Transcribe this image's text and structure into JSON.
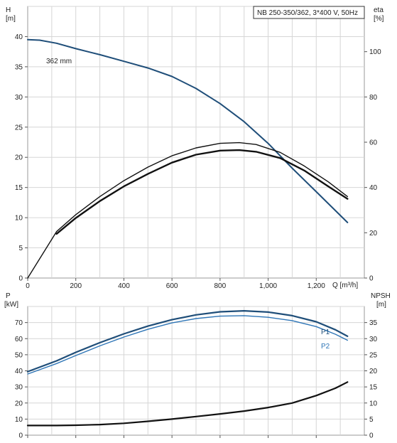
{
  "chart_data": [
    {
      "type": "line",
      "title": "NB 250-350/362, 3*400 V, 50Hz",
      "xlabel": "Q [m³/h]",
      "ylabel_left_name": "H",
      "ylabel_left_unit": "[m]",
      "ylabel_right_name": "eta",
      "ylabel_right_unit": "[%]",
      "xlim": [
        0,
        1400
      ],
      "ylim_left": [
        0,
        45
      ],
      "ylim_right": [
        0,
        120
      ],
      "x_ticks": [
        0,
        200,
        400,
        600,
        800,
        1000,
        1200
      ],
      "x_tick_labels": [
        "0",
        "200",
        "400",
        "600",
        "800",
        "1,000",
        "1,200"
      ],
      "y_left_ticks": [
        0,
        5,
        10,
        15,
        20,
        25,
        30,
        35,
        40
      ],
      "y_left_tick_labels": [
        "0",
        "5",
        "10",
        "15",
        "20",
        "25",
        "30",
        "35",
        "40"
      ],
      "y_right_ticks": [
        0,
        20,
        40,
        60,
        80,
        100
      ],
      "y_right_tick_labels": [
        "0",
        "20",
        "40",
        "60",
        "80",
        "100"
      ],
      "grid": true,
      "series": [
        {
          "name": "362 mm",
          "axis": "left",
          "color": "#1f4e79",
          "x": [
            0,
            50,
            120,
            200,
            300,
            400,
            500,
            600,
            700,
            800,
            900,
            1000,
            1100,
            1200,
            1330
          ],
          "y": [
            39.5,
            39.4,
            38.9,
            38.0,
            37.0,
            35.9,
            34.8,
            33.4,
            31.4,
            28.9,
            25.9,
            22.3,
            18.2,
            14.3,
            9.2
          ]
        },
        {
          "name": "",
          "axis": "right",
          "color": "#111111",
          "x": [
            0,
            120,
            200,
            300,
            400,
            500,
            600,
            700,
            800,
            880,
            950,
            1050,
            1150,
            1250,
            1330
          ],
          "y": [
            0,
            20.5,
            28,
            36,
            43,
            49,
            54,
            57.5,
            59.5,
            59.8,
            59,
            55.5,
            49.5,
            42.5,
            36
          ]
        },
        {
          "name": "",
          "axis": "right",
          "color": "#111111",
          "x": [
            120,
            200,
            300,
            400,
            500,
            600,
            700,
            800,
            880,
            950,
            1050,
            1150,
            1250,
            1330
          ],
          "y": [
            19.5,
            26.5,
            34,
            40.5,
            46,
            51,
            54.5,
            56.3,
            56.5,
            55.8,
            53,
            47.5,
            40.5,
            35
          ]
        }
      ]
    },
    {
      "type": "line",
      "xlabel": "",
      "ylabel_left_name": "P",
      "ylabel_left_unit": "[kW]",
      "ylabel_right_name": "NPSH",
      "ylabel_right_unit": "[m]",
      "xlim": [
        0,
        1400
      ],
      "ylim_left": [
        0,
        80
      ],
      "ylim_right": [
        0,
        40
      ],
      "y_left_ticks": [
        0,
        10,
        20,
        30,
        40,
        50,
        60,
        70
      ],
      "y_left_tick_labels": [
        "0",
        "10",
        "20",
        "30",
        "40",
        "50",
        "60",
        "70"
      ],
      "y_right_ticks": [
        0,
        5,
        10,
        15,
        20,
        25,
        30,
        35
      ],
      "y_right_tick_labels": [
        "0",
        "5",
        "10",
        "15",
        "20",
        "25",
        "30",
        "35"
      ],
      "grid": true,
      "series": [
        {
          "name": "P1",
          "axis": "left",
          "color": "#1f4e79",
          "x": [
            0,
            120,
            200,
            300,
            400,
            500,
            600,
            700,
            800,
            900,
            1000,
            1100,
            1200,
            1280,
            1330
          ],
          "y": [
            39.5,
            46.2,
            51.5,
            57.5,
            63,
            67.8,
            71.8,
            74.8,
            76.7,
            77.3,
            76.5,
            74.3,
            70.5,
            65.5,
            61.5
          ]
        },
        {
          "name": "P2",
          "axis": "left",
          "color": "#2e75b6",
          "x": [
            0,
            120,
            200,
            300,
            400,
            500,
            600,
            700,
            800,
            900,
            1000,
            1100,
            1200,
            1280,
            1330
          ],
          "y": [
            38,
            44.5,
            49.5,
            55.5,
            61,
            65.8,
            69.8,
            72.5,
            74,
            74.3,
            73.3,
            71.2,
            67.5,
            62.7,
            59
          ]
        },
        {
          "name": "",
          "axis": "right",
          "color": "#111111",
          "x": [
            0,
            120,
            200,
            300,
            400,
            500,
            600,
            700,
            800,
            900,
            1000,
            1100,
            1200,
            1280,
            1330
          ],
          "y": [
            3,
            3,
            3.1,
            3.3,
            3.7,
            4.3,
            5,
            5.8,
            6.6,
            7.5,
            8.6,
            10,
            12.3,
            14.6,
            16.5
          ]
        }
      ]
    }
  ]
}
